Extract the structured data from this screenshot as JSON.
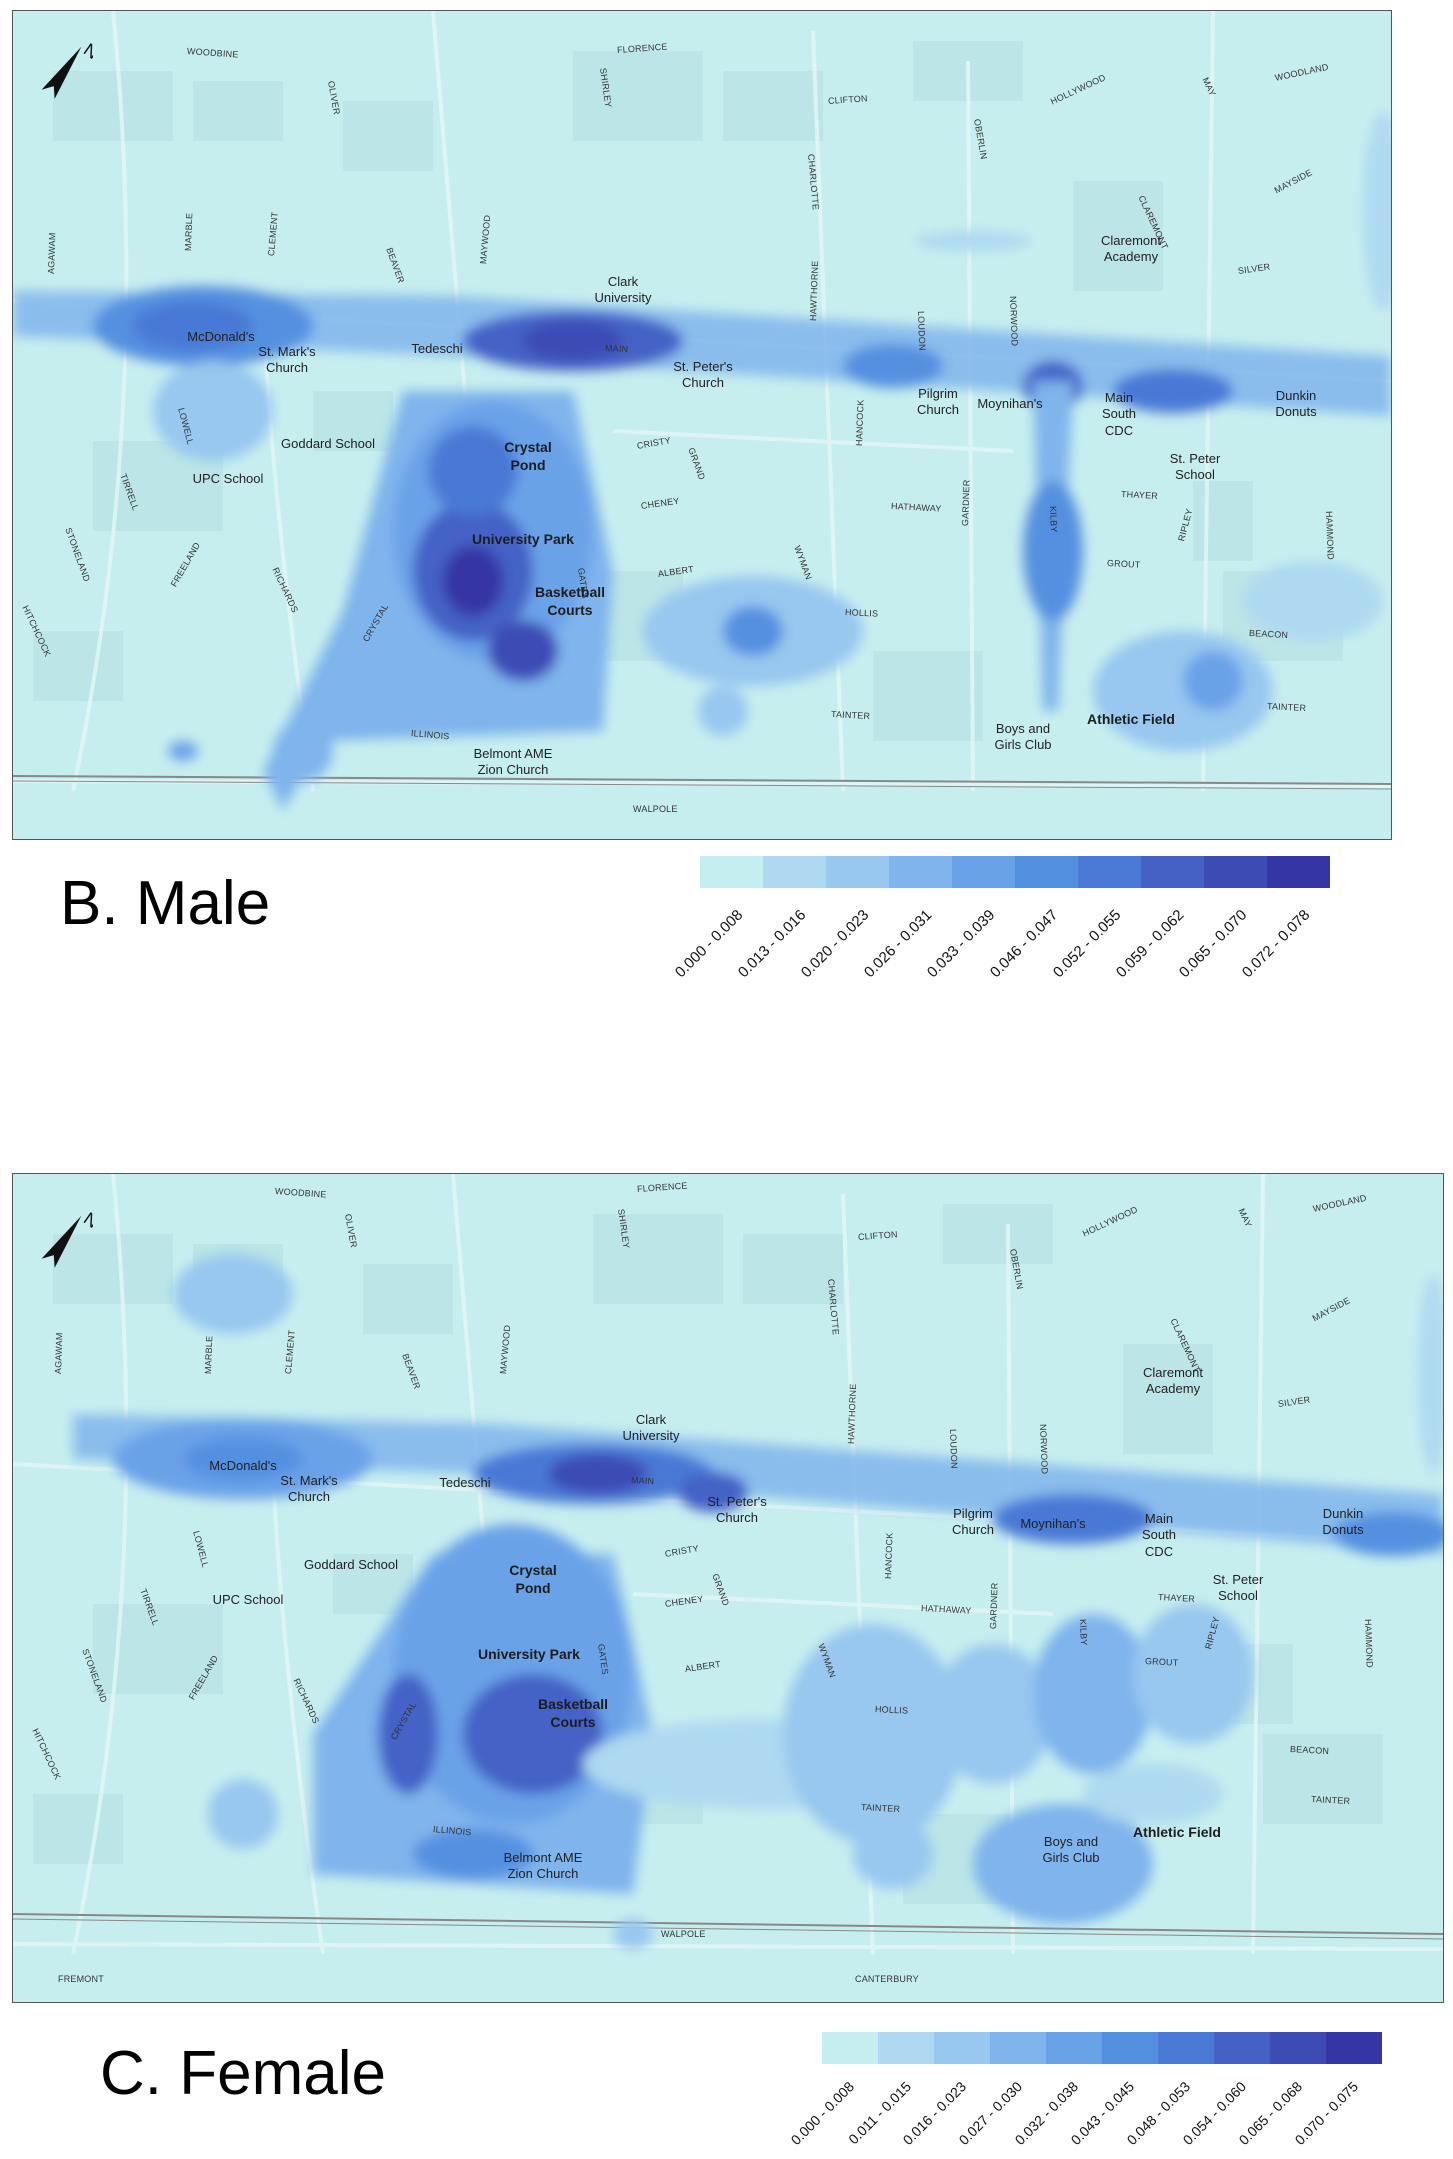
{
  "north_label": "N",
  "panels": [
    {
      "id": "male",
      "title": "B. Male",
      "legend": {
        "ranges": [
          "0.000 - 0.008",
          "0.013 - 0.016",
          "0.020 - 0.023",
          "0.026 - 0.031",
          "0.033 - 0.039",
          "0.046 - 0.047",
          "0.052 - 0.055",
          "0.059 - 0.062",
          "0.065 - 0.070",
          "0.072 - 0.078"
        ],
        "colors": [
          "#c4eef0",
          "#aed9f0",
          "#98c7ef",
          "#7fb4ec",
          "#6aa2e8",
          "#5490e0",
          "#4a79d6",
          "#4462c6",
          "#3d4bb5",
          "#3535a5"
        ]
      },
      "streets": [
        "WOODBINE",
        "OLIVER",
        "SHIRLEY",
        "FLORENCE",
        "CLIFTON",
        "CHARLOTTE",
        "OBERLIN",
        "HOLLYWOOD",
        "MAY",
        "WOODLAND",
        "MAYSIDE",
        "CLAREMONT",
        "SILVER",
        "AGAWAM",
        "MARBLE",
        "CLEMENT",
        "BEAVER",
        "MAYWOOD",
        "HAWTHORNE",
        "LOUDON",
        "NORWOOD",
        "MAIN",
        "LOWELL",
        "TIRRELL",
        "STONELAND",
        "FREELAND",
        "RICHARDS",
        "HITCHCOCK",
        "CRYSTAL",
        "CRISTY",
        "GRAND",
        "CHENEY",
        "HANCOCK",
        "HATHAWAY",
        "GARDNER",
        "KILBY",
        "THAYER",
        "RIPLEY",
        "HAMMOND",
        "GROUT",
        "ALBERT",
        "WYMAN",
        "GATES",
        "HOLLIS",
        "BEACON",
        "TAINTER",
        "TAINTER",
        "ILLINOIS",
        "WALPOLE"
      ],
      "places": [
        "McDonald's",
        "St. Mark's\nChurch",
        "Tedeschi",
        "Clark\nUniversity",
        "St. Peter's\nChurch",
        "Pilgrim\nChurch",
        "Moynihan's",
        "Main\nSouth\nCDC",
        "Dunkin\nDonuts",
        "Claremont\nAcademy",
        "Goddard School",
        "UPC School",
        "Crystal\nPond",
        "University Park",
        "Basketball\nCourts",
        "St. Peter\nSchool",
        "Athletic Field",
        "Boys and\nGirls Club",
        "Belmont AME\nZion Church"
      ]
    },
    {
      "id": "female",
      "title": "C. Female",
      "legend": {
        "ranges": [
          "0.000 - 0.008",
          "0.011 - 0.015",
          "0.016 - 0.023",
          "0.027 - 0.030",
          "0.032 - 0.038",
          "0.043 - 0.045",
          "0.048 - 0.053",
          "0.054 - 0.060",
          "0.065 - 0.068",
          "0.070 - 0.075"
        ],
        "colors": [
          "#c4eef0",
          "#aed9f0",
          "#98c7ef",
          "#7fb4ec",
          "#6aa2e8",
          "#5490e0",
          "#4a79d6",
          "#4462c6",
          "#3d4bb5",
          "#3535a5"
        ]
      },
      "streets": [
        "WOODBINE",
        "OLIVER",
        "SHIRLEY",
        "FLORENCE",
        "CLIFTON",
        "CHARLOTTE",
        "OBERLIN",
        "HOLLYWOOD",
        "MAY",
        "WOODLAND",
        "MAYSIDE",
        "CLAREMONT",
        "SILVER",
        "AGAWAM",
        "MARBLE",
        "CLEMENT",
        "BEAVER",
        "MAYWOOD",
        "HAWTHORNE",
        "LOUDON",
        "NORWOOD",
        "MAIN",
        "LOWELL",
        "TIRRELL",
        "STONELAND",
        "FREELAND",
        "RICHARDS",
        "HITCHCOCK",
        "CRYSTAL",
        "CRISTY",
        "GRAND",
        "CHENEY",
        "HANCOCK",
        "HATHAWAY",
        "GARDNER",
        "KILBY",
        "THAYER",
        "RIPLEY",
        "HAMMOND",
        "GROUT",
        "ALBERT",
        "WYMAN",
        "GATES",
        "HOLLIS",
        "BEACON",
        "TAINTER",
        "TAINTER",
        "ILLINOIS",
        "WALPOLE",
        "FREMONT",
        "CANTERBURY"
      ],
      "places": [
        "McDonald's",
        "St. Mark's\nChurch",
        "Tedeschi",
        "Clark\nUniversity",
        "St. Peter's\nChurch",
        "Pilgrim\nChurch",
        "Moynihan's",
        "Main\nSouth\nCDC",
        "Dunkin\nDonuts",
        "Claremont\nAcademy",
        "Goddard School",
        "UPC School",
        "Crystal\nPond",
        "University Park",
        "Basketball\nCourts",
        "St. Peter\nSchool",
        "Athletic Field",
        "Boys and\nGirls Club",
        "Belmont AME\nZion Church"
      ]
    }
  ]
}
